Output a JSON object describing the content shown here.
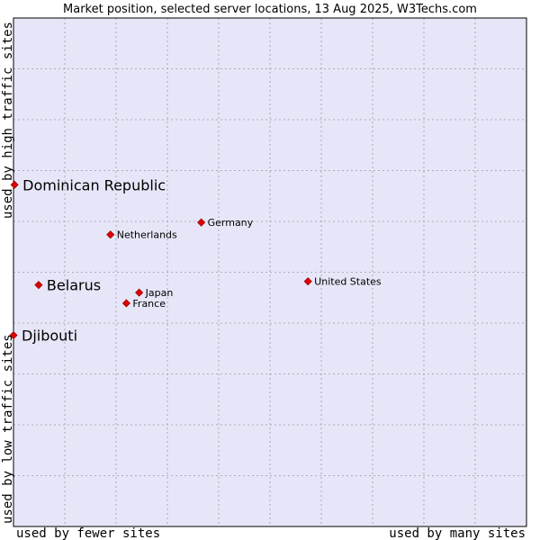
{
  "chart_data": {
    "type": "scatter",
    "title": "Market position, selected server locations, 13 Aug 2025, W3Techs.com",
    "xlabel_left": "used by fewer sites",
    "xlabel_right": "used by many sites",
    "ylabel_top": "used by high traffic sites",
    "ylabel_bottom": "used by low traffic sites",
    "xlim": [
      0,
      10
    ],
    "ylim": [
      0,
      10
    ],
    "grid": true,
    "points": [
      {
        "label": "Dominican Republic",
        "x": 0.02,
        "y": 6.72,
        "emphasis": true
      },
      {
        "label": "Belarus",
        "x": 0.49,
        "y": 4.75,
        "emphasis": true
      },
      {
        "label": "Djibouti",
        "x": 0.0,
        "y": 3.76,
        "emphasis": true
      },
      {
        "label": "Germany",
        "x": 3.66,
        "y": 5.98,
        "emphasis": false
      },
      {
        "label": "Netherlands",
        "x": 1.89,
        "y": 5.74,
        "emphasis": false
      },
      {
        "label": "Japan",
        "x": 2.45,
        "y": 4.6,
        "emphasis": false
      },
      {
        "label": "France",
        "x": 2.2,
        "y": 4.39,
        "emphasis": false
      },
      {
        "label": "United States",
        "x": 5.74,
        "y": 4.82,
        "emphasis": false
      }
    ]
  },
  "colors": {
    "plot_bg": "#e6e6f8",
    "grid": "#9a9aaa",
    "marker": "#e00000",
    "marker_stroke": "#9a0000",
    "frame": "#000000"
  }
}
